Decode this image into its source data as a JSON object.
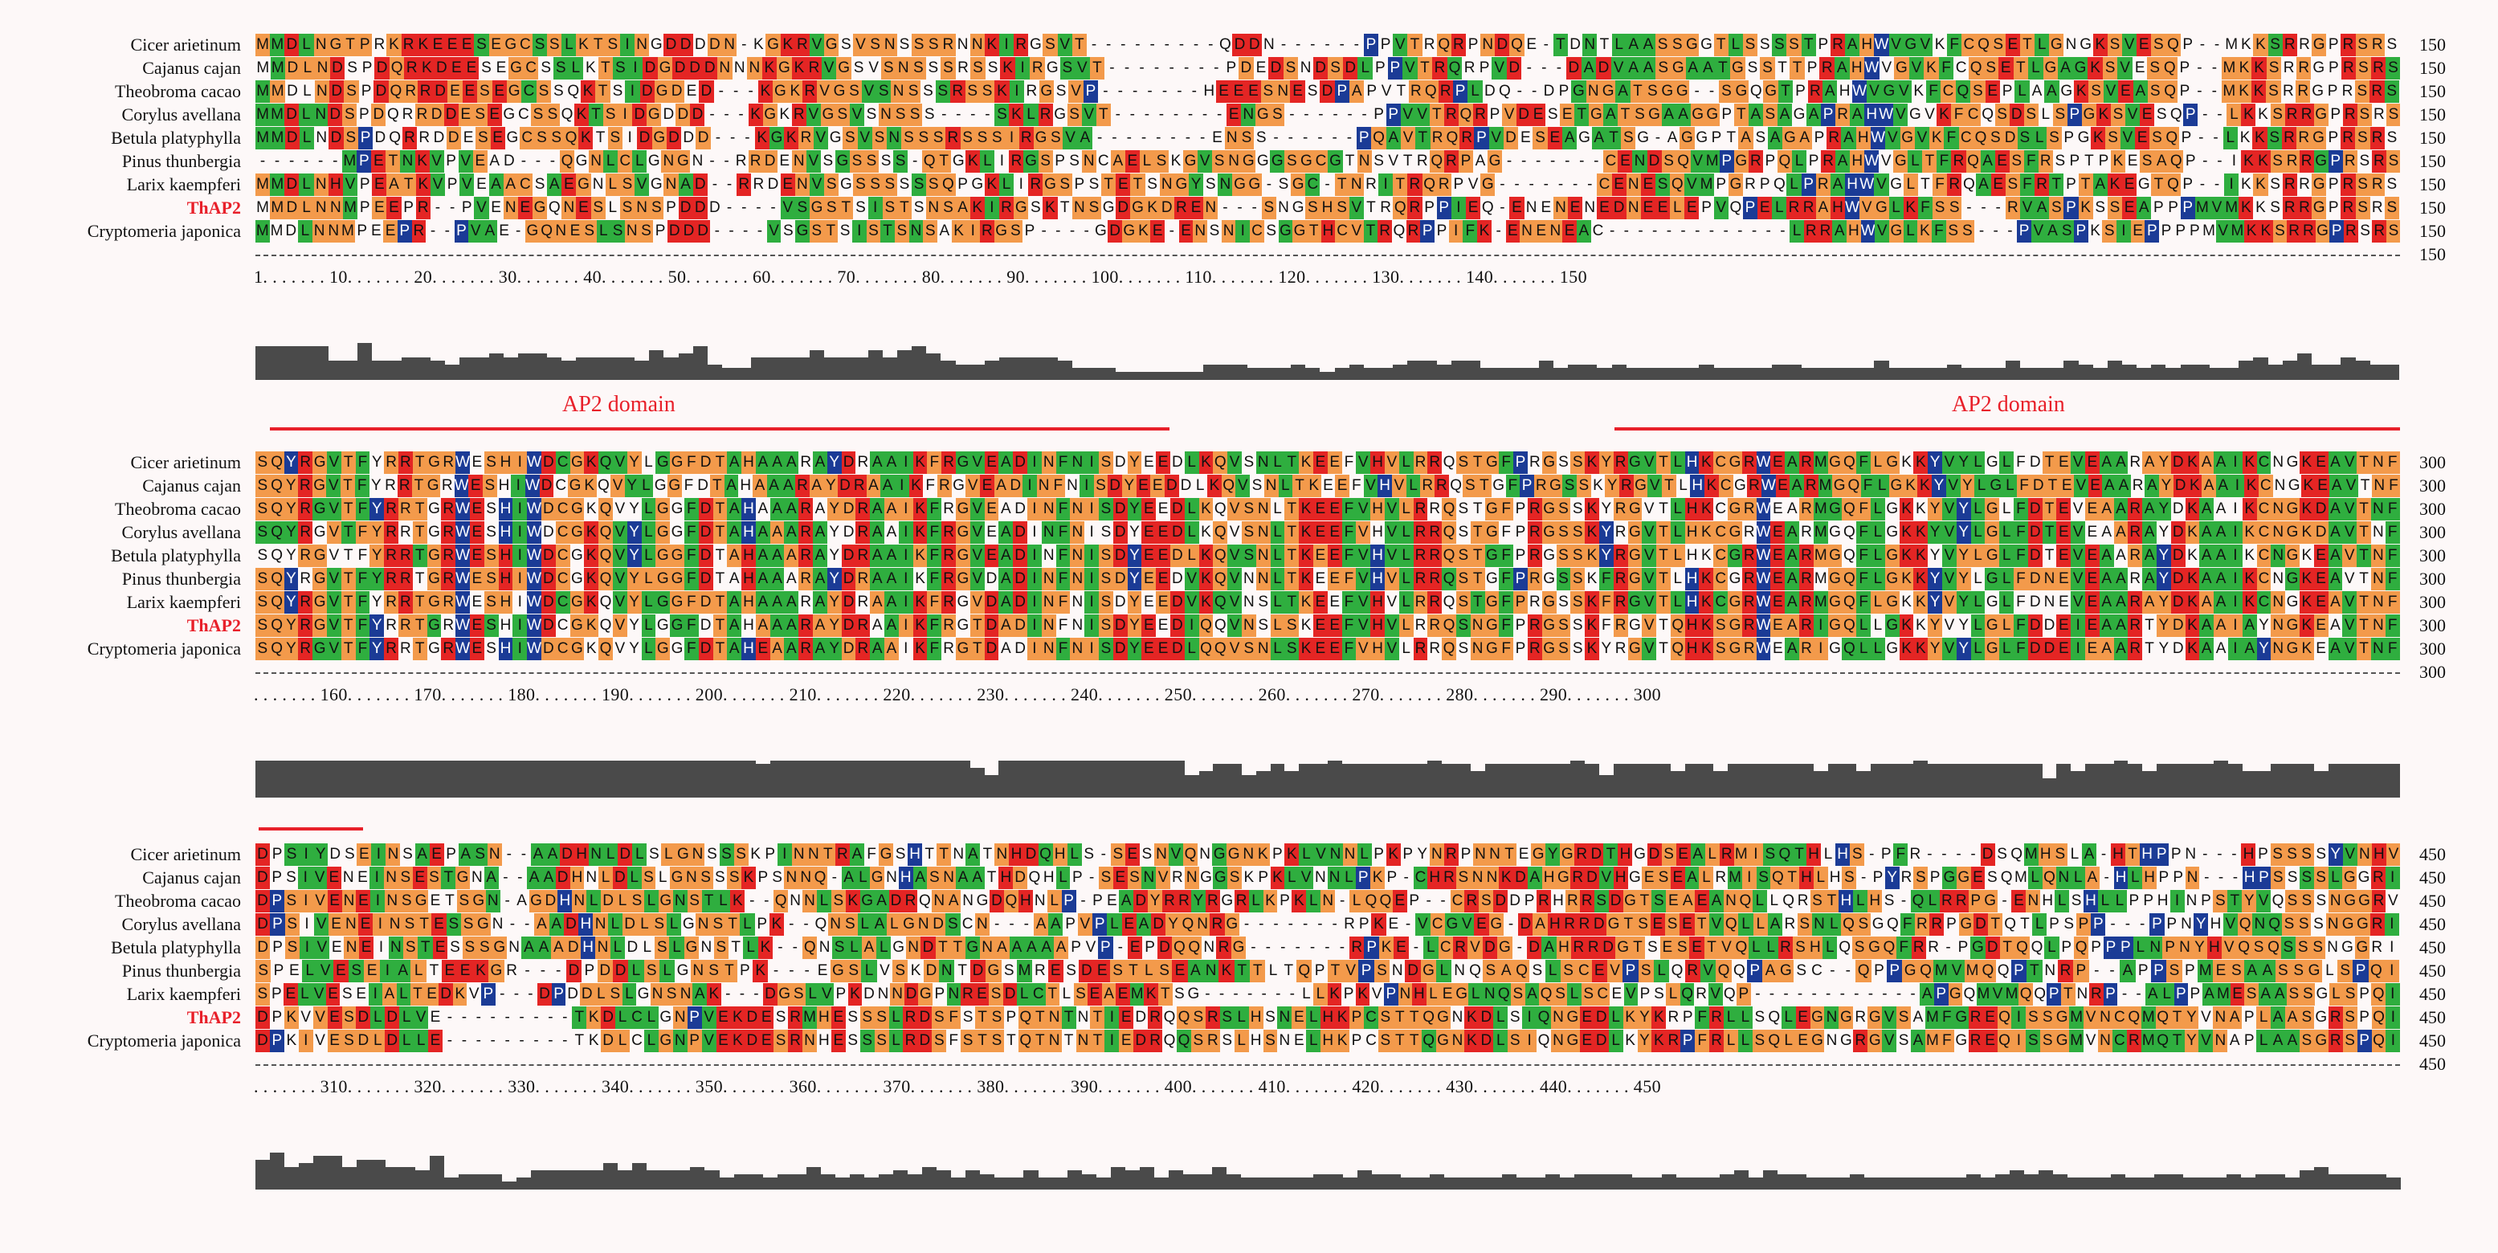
{
  "species": [
    "Cicer arietinum",
    "Cajanus cajan",
    "Theobroma cacao",
    "Corylus avellana",
    "Betula platyphylla",
    "Pinus thunbergia",
    "Larix kaempferi",
    "ThAP2",
    "Cryptomeria japonica"
  ],
  "highlight_species": "ThAP2",
  "blocks": [
    {
      "end": "150",
      "ruler": "1. . . . . . . 10. . . . . . . 20. . . . . . . 30. . . . . . . 40. . . . . . . 50. . . . . . . 60. . . . . . . 70. . . . . . . 80. . . . . . . 90. . . . . . . 100. . . . . . . 110. . . . . . . 120. . . . . . . 130. . . . . . . 140. . . . . . . 150",
      "sequences": [
        "MMDLNGTPRKRKEEESEGCSSLKTSINGDDDDN-KGKRVGSVSNSSSRNNKIRGSVT---------QDDN------PPVTRQRPNDQE-TDNTLAASSGGTLSSSSTPRAHWVGVKFCQSETLGNGKSVESQP--MKKSRRGPRSRS",
        "MMDLNDSPDQRKDEESEGCSSLKTSIDGDDDNNNKGKRVGSVSNSSSRSSKIRGSVT--------PDEDSNDSDLPPVTRQRPVD---DADVAASGAATGSSTTPRAHWVGVKFCQSETLGAGKSVESQP--MKKSRRGPRSRS",
        "MMDLNDSPDQRRDEESEGCSSQKTSIDGDED---KGKRVGSVSNSSSRSSKIRGSVP-------HEEESNESDPAPVTRQRPLDQ--DPGNGATSGG--SGQGTPRAHWVGVKFCQSEPLAAGKSVEASQP--MKKSRRGPRSRS",
        "MMDLNDSPDQRRDDESEGCSSQKTSIDGDDD---KGKRVGSVSNSSS----SKLRGSVT--------ENGS------PPVVTRQRPVDESETGATSGAAGGPTASAGAPRAHWVGVKFCQSDSLSPGKSVESQP--LKKSRRGPRSRS",
        "MMDLNDSPDQRRDDESEGCSSQKTSIDGDDD---KGKRVGSVSNSSSRSSSIRGSVA--------ENSS------PQAVTRQRPVDESEAGATSG-AGGPTASAGAPRAHWVGVKFCQSDSLSPGKSVESQP--LKKSRRGPRSRS",
        "------MPETNKVPVEAD---QGNLCLGNGN--RRDENVSGSSSS-QTGKLIRGSPSNCAELSKGVSNGGGSGCGTNSVTRQRPAG-------CENDSQVMPGRPQLPRAHWVGLTFRQAESFRSPTPKESAQP--IKKSRRGPRSRS",
        "MMDLNHVPEATKVPVEAACSAEGNLSVGNAD--RRDENVSGSSSSSSQPGKLIRGSPSTETSNGYSNGG-SGC-TNRITRQRPVG-------CENESQVMPGRPQLPRAHWVGLTFRQAESFRTPTAKEGTQP--IKKSRRGPRSRS",
        "MMDLNNMPEEPR--PVENEGQNESLSNSPDDD----VSGSTSISTSNSAKIRGSKTNSGDGKDREN---SNGSHSVTRQRPPIEQ-ENENENEDNEELEPVQPELRRAHWVGLKFSS---RVASPKSSEAPPPMVMKKSRRGPRSRS",
        "MMDLNNMPEEPR--PVAE-GQNESLSNSPDDD----VSGSTSISTSNSAKIRGSP----GDGKE-ENSNICSGGTHCVTRQRPPIFK-ENENEAC-------------LRRAHWVGLKFSS---PVASPKSIEPPPPMVMKKSRRGPRSRS"
      ],
      "domains": []
    },
    {
      "end": "300",
      "ruler": ". . . . . . . 160. . . . . . . 170. . . . . . . 180. . . . . . . 190. . . . . . . 200. . . . . . . 210. . . . . . . 220. . . . . . . 230. . . . . . . 240. . . . . . . 250. . . . . . . 260. . . . . . . 270. . . . . . . 280. . . . . . . 290. . . . . . . 300",
      "sequences": [
        "SQYRGVTFYRRTGRWESHIWDCGKQVYLGGFDTAHAAARAYDRAAIKFRGVEADINFNISDYEEDLKQVSNLTKEEFVHVLRRQSTGFPRGSSKYRGVTLHKCGRWEARMGQFLGKKYVYLGLFDTEVEAARAYDKAAIKCNGKEAVTNF",
        "SQYRGVTFYRRTGRWESHIWDCGKQVYLGGFDTAHAAARAYDRAAIKFRGVEADINFNISDYEEDDLKQVSNLTKEEFVHVLRRQSTGFPRGSSKYRGVTLHKCGRWEARMGQFLGKKYVYLGLFDTEVEAARAYDKAAIKCNGKEAVTNF",
        "SQYRGVTFYRRTGRWESHIWDCGKQVYLGGFDTAHAAARAYDRAAIKFRGVEADINFNISDYEEDLKQVSNLTKEEFVHVLRRQSTGFPRGSSKYRGVTLHKCGRWEARMGQFLGKKYVYLGLFDTEVEAARAYDKAAIKCNGKDAVTNF",
        "SQYRGVTFYRRTGRWESHIWDCGKQVYLGGFDTAHAAARAYDRAAIKFRGVEADINFNISDYEEDLKQVSNLTKEEFVHVLRRQSTGFPRGSSKYRGVTLHKCGRWEARMGQFLGKKYVYLGLFDTEVEAARAYDKAAIKCNGKDAVTNF",
        "SQYRGVTFYRRTGRWESHIWDCGKQVYLGGFDTAHAAARAYDRAAIKFRGVEADINFNISDYEEDLKQVSNLTKEEFVHVLRRQSTGFPRGSSKYRGVTLHKCGRWEARMGQFLGKKYVYLGLFDTEVEAARAYDKAAIKCNGKEAVTNF",
        "SQYRGVTFYRRTGRWESHIWDCGKQVYLGGFDTAHAAARAYDRAAIKFRGVDADINFNISDYEEDVKQVNNLTKEEFVHVLRRQSTGFPRGSSKFRGVTLHKCGRWEARMGQFLGKKYVYLGLFDNEVEAARAYDKAAIKCNGKEAVTNF",
        "SQYRGVTFYRRTGRWESHIWDCGKQVYLGGFDTAHAAARAYDRAAIKFRGVDADINFNISDYEEDVKQVNSLTKEEFVHVLRRQSTGFPRGSSKFRGVTLHKCGRWEARMGQFLGKKYVYLGLFDNEVEAARAYDKAAIKCNGKEAVTNF",
        "SQYRGVTFYRRTGRWESHIWDCGKQVYLGGFDTAHAAARAYDRAAIKFRGTDADINFNISDYEEDIQQVNSLSKEEFVHVLRRQSNGFPRGSSKFRGVTQHKSGRWEARIGQLLGKKYVYLGLFDDEIEAARTYDKAAIAYNGKEAVTNF",
        "SQYRGVTFYRRTGRWESHIWDCGKQVYLGGFDTAHEAARAYDRAAIKFRGTDADINFNISDYEEDLQQVSNLSKEEFVHVLRRQSNGFPRGSSKYRGVTQHKSGRWEARIGQLLGKKYVYLGLFDDEIEAARTYDKAAIAYNGKEAVTNF"
      ],
      "domains": [
        "AP2 domain",
        "AP2 domain"
      ]
    },
    {
      "end": "450",
      "ruler": ". . . . . . . 310. . . . . . . 320. . . . . . . 330. . . . . . . 340. . . . . . . 350. . . . . . . 360. . . . . . . 370. . . . . . . 380. . . . . . . 390. . . . . . . 400. . . . . . . 410. . . . . . . 420. . . . . . . 430. . . . . . . 440. . . . . . . 450",
      "sequences": [
        "DPSIYDSEINSAEPASN--AADHNLDLSLGNSSSKPINNTRAFGSHTTNATNHDQHLS-SESNVQNGGNKPKLVNNLPKPYNRPNNTEGYGRDTHGDSEALRMISQTHLHS-PFR----DSQMHSLA-HTHPPN---HPSSSSYVNHV",
        "DPSIVENEINSESTGNA--AADHNLDLSLGNSSSKPSNNQ-ALGNHASNAATHDQHLP-SESNVRNGGSKPKLVNNLPKP-CHRSNNKDAHGRDVHGESEALRMISQTHLHS-PYRSPGGESQMLQNLA-HLHPPN---HPSSSSLGGRI",
        "DPSIVENEINSGETSGN-AGDHNLDLSLGNSTLK--QNNLSKGADRQNANGDQHNLP-PEADYRRYRGRLKPKLN-LQQEP--CRSDDPRHRRSDGTSEAEANQLLQRSTHLHS-QLRRPG-ENHLSHLLPPHINPSTYVQSSSNGGRV",
        "DPSIVENEINSTESSGN--AADHNLDLSLGNSTLPK--QNSLALGNDSCN---AAPVPLEADYQNRG-------RPKE-VCGVEG-DAHRRDGTSESETVQLLARSNLQSGQFRRPGDTQTLPSPP---PPNYHVQNQSSSNGGRI",
        "DPSIVENEINSTESSSGNAAADHNLDLSLGNSTLK--QNSLALGNDTTGNAAAAAPVP-EPDQQNRG-------RPKE-LCRVDG-DAHRRDGTSESETVQLLRSHLQSGQFRR-PGDTQQLPQPPPLNPNYHVQSQSSSNGGRI",
        "SPELVESEIALTEEKGR---DPDDLSLGNSTPK---EGSLVSKDNTDGSMRESDESTLSEANKTTLTQPTVPSNDGLNQSAQSLSCEVPSLQRVQQPAGSC--QPPGQMVMQQPTNRP--APPSPMESAASSGLSPQI",
        "SPELVESEIALTEDKVP---DPDDLSLGNSNAK---DGSLVPKDNNDGPNRESDLCTLSEAEMKTSG-------LLKPKVPNHLEGLNQSAQSLSCEVPSLQRVQP------------APGQMVMQQPTNRP--ALPPAMESAASSGLSPQI",
        "DPKVVESDLDLVE---------TKDLCLGNPVEKDESRMHESSSLRDSFSTSPQTNTNTIEDRQQSRSLHSNELHKPCSTTQGNKDLSIQNGEDLKYKRPFRLLSQLEGNGRGVSAMFGREQISSGMVNCQMQTYVNAPLAASGRSPQI",
        "DPKIVESDLDLLE---------TKDLCLGNPVEKDESRNHESSSLRDSFSTSTQTNTNTIEDRQQSRSLHSNELHKPCSTTQGNKDLSIQNGEDLKYKRPFRLLSQLEGNGRGVSAMFGREQISSGMVNCRMQTYVNAPLAASGRSPQI"
      ],
      "domains": []
    }
  ],
  "colors": {
    "orange": "#f39a4b",
    "green": "#2fae3f",
    "red": "#e42524",
    "blue": "#1b3b96",
    "domain": "#e8202a",
    "conservation": "#4a4a4a"
  }
}
